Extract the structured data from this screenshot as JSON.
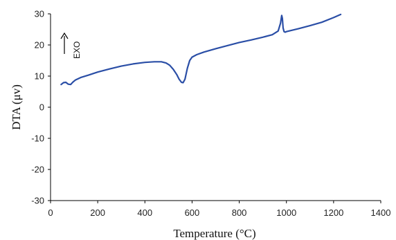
{
  "chart_data": {
    "type": "line",
    "title": "",
    "xlabel": "Temperature (°C)",
    "ylabel": "DTA (μv)",
    "xlim": [
      0,
      1400
    ],
    "ylim": [
      -30,
      30
    ],
    "xticks": [
      0,
      200,
      400,
      600,
      800,
      1000,
      1200,
      1400
    ],
    "yticks": [
      30,
      20,
      10,
      0,
      -10,
      -20,
      -30
    ],
    "grid": false,
    "legend": "none",
    "annotation": "EXO",
    "colors": {
      "line": "#2a4ea6",
      "axis": "#000000"
    },
    "series": [
      {
        "x": [
          45,
          55,
          65,
          75,
          85,
          95,
          105,
          130,
          160,
          200,
          250,
          300,
          350,
          400,
          440,
          470,
          490,
          505,
          520,
          535,
          545,
          555,
          562,
          570,
          580,
          590,
          600,
          620,
          650,
          700,
          750,
          800,
          850,
          900,
          940,
          965,
          975,
          980,
          983,
          986,
          990,
          995,
          1000,
          1050,
          1100,
          1150,
          1200,
          1230
        ],
        "y": [
          7.3,
          7.9,
          8.0,
          7.4,
          7.3,
          8.1,
          8.7,
          9.6,
          10.3,
          11.3,
          12.3,
          13.2,
          13.9,
          14.4,
          14.6,
          14.6,
          14.2,
          13.5,
          12.2,
          10.5,
          9.0,
          8.0,
          7.9,
          9.0,
          12.5,
          15.0,
          16.1,
          16.9,
          17.7,
          18.8,
          19.8,
          20.8,
          21.6,
          22.5,
          23.3,
          24.5,
          27.0,
          29.5,
          28.5,
          25.5,
          24.3,
          24.1,
          24.3,
          25.2,
          26.2,
          27.3,
          28.8,
          29.8
        ]
      }
    ]
  }
}
